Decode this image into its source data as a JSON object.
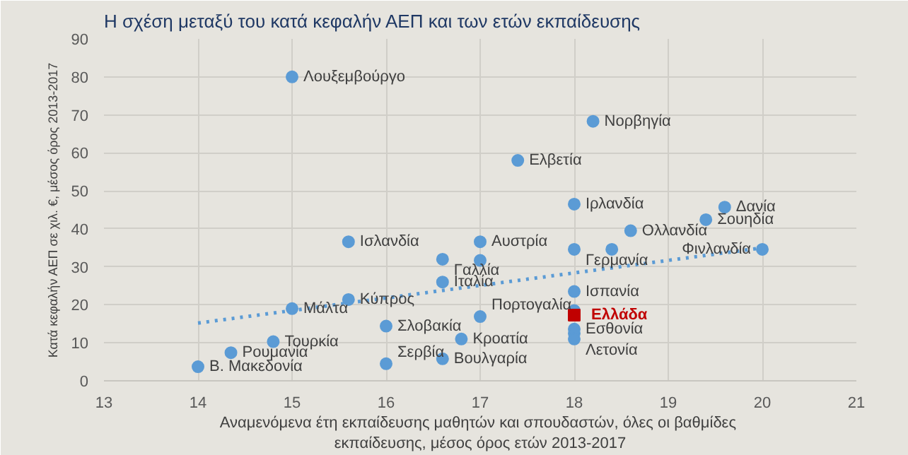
{
  "chart_data": {
    "type": "scatter",
    "title": "Η σχέση μεταξύ του κατά κεφαλήν ΑΕΠ και των ετών εκπαίδευσης",
    "xlabel": "Αναμενόμενα  έτη εκπαίδευσης μαθητών και σπουδαστών, όλες οι βαθμίδες εκπαίδευσης, μέσος όρος ετών 2013-2017",
    "ylabel": "Κατά κεφαλήν ΑΕΠ σε χιλ. €, μέσος όρος 2013-2017",
    "xlim": [
      13,
      21
    ],
    "xticks": [
      13,
      14,
      15,
      16,
      17,
      18,
      19,
      20,
      21
    ],
    "ylim": [
      0,
      90
    ],
    "yticks": [
      0,
      10,
      20,
      30,
      40,
      50,
      60,
      70,
      80,
      90
    ],
    "grid": true,
    "legend": false,
    "marker": "circle",
    "series": [
      {
        "color": "#5b9bd5",
        "x": [
          14.0,
          14.35,
          14.8,
          15.0,
          15.0,
          15.6,
          15.6,
          16.0,
          16.0,
          16.6,
          16.6,
          16.6,
          16.8,
          17.0,
          17.0,
          17.0,
          17.4,
          18.2,
          18.0,
          18.0,
          18.4,
          18.6,
          19.4,
          19.6,
          20.0,
          18.0,
          18.0,
          18.0,
          18.0,
          18.0
        ],
        "values": [
          3.7,
          7.4,
          10.3,
          80,
          19,
          36.6,
          21.4,
          14.4,
          4.5,
          32,
          26,
          5.8,
          11,
          36.6,
          31.7,
          16.9,
          58,
          68.3,
          46.5,
          34.6,
          34.6,
          39.5,
          42.4,
          45.7,
          34.6,
          23.5,
          18.5,
          13.6,
          12.5,
          11.0
        ]
      },
      {
        "name": "Ελλάδα",
        "color": "#c00000",
        "marker": "square",
        "x": [
          18.0
        ],
        "values": [
          17.3
        ]
      },
      {
        "type": "line",
        "color": "#5b9bd5",
        "line_style": "dotted",
        "marker": "none",
        "x": [
          14,
          20
        ],
        "values": [
          15.2,
          35
        ]
      }
    ],
    "annotations": [
      {
        "text": "Λουξεμβούργο",
        "x": 15.0,
        "y": 80
      },
      {
        "text": "Νορβηγία",
        "x": 18.2,
        "y": 68.3
      },
      {
        "text": "Ελβετία",
        "x": 17.4,
        "y": 58
      },
      {
        "text": "Ιρλανδία",
        "x": 18.0,
        "y": 46.5
      },
      {
        "text": "Δανία",
        "x": 19.6,
        "y": 45.7
      },
      {
        "text": "Σουηδία",
        "x": 19.4,
        "y": 42.4
      },
      {
        "text": "Ολλανδία",
        "x": 18.6,
        "y": 39.5
      },
      {
        "text": "Φινλανδία",
        "x": 20.0,
        "y": 34.6
      },
      {
        "text": "Αυστρία",
        "x": 17.0,
        "y": 36.6
      },
      {
        "text": "Γερμανία",
        "x": 18.0,
        "y": 34.6
      },
      {
        "text": "Ισλανδία",
        "x": 15.6,
        "y": 36.6
      },
      {
        "text": "Γαλλία",
        "x": 16.6,
        "y": 32
      },
      {
        "text": "Ιταλία",
        "x": 16.6,
        "y": 26
      },
      {
        "text": "Κύπρος",
        "x": 15.6,
        "y": 21.4
      },
      {
        "text": "Μάλτα",
        "x": 15.0,
        "y": 19
      },
      {
        "text": "Πορτογαλία",
        "x": 17.0,
        "y": 16.9
      },
      {
        "text": "Ισπανία",
        "x": 18.0,
        "y": 23.5
      },
      {
        "text": "Εσθονία",
        "x": 18.0,
        "y": 13.6
      },
      {
        "text": "Λετονία",
        "x": 18.0,
        "y": 11.0
      },
      {
        "text": "Σλοβακία",
        "x": 16.0,
        "y": 14.4
      },
      {
        "text": "Κροατία",
        "x": 16.8,
        "y": 11
      },
      {
        "text": "Βουλγαρία",
        "x": 16.6,
        "y": 5.8
      },
      {
        "text": "Σερβία",
        "x": 16.0,
        "y": 4.5
      },
      {
        "text": "Τουρκία",
        "x": 14.8,
        "y": 10.3
      },
      {
        "text": "Ρουμανία",
        "x": 14.35,
        "y": 7.4
      },
      {
        "text": "Β. Μακεδονία",
        "x": 14.0,
        "y": 3.7
      }
    ]
  }
}
